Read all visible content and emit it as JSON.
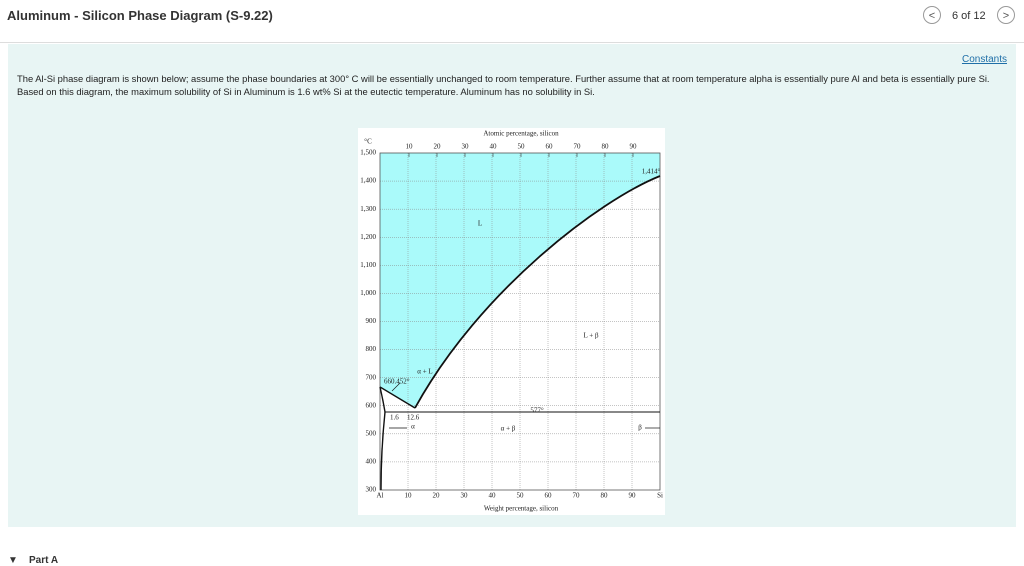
{
  "header": {
    "title": "Aluminum - Silicon Phase Diagram (S-9.22)",
    "pager": "6 of 12"
  },
  "constants_link": "Constants",
  "problem_text": "The Al-Si phase diagram is shown below; assume the phase boundaries at 300° C will be essentially unchanged to room temperature. Further assume that at room temperature alpha is essentially pure Al and beta is essentially pure Si. Based on this diagram, the maximum solubility of Si in Aluminum is 1.6 wt% Si at the eutectic temperature. Aluminum has no solubility in Si.",
  "diagram": {
    "top_axis_title": "Atomic percentage, silicon",
    "bottom_axis_title": "Weight percentage, silicon",
    "y_unit": "°C",
    "top_ticks": [
      "10",
      "20",
      "30",
      "40",
      "50",
      "60",
      "70",
      "80",
      "90"
    ],
    "bottom_ticks": [
      "Al",
      "10",
      "20",
      "30",
      "40",
      "50",
      "60",
      "70",
      "80",
      "90",
      "Si"
    ],
    "y_ticks": [
      "1,500",
      "1,400",
      "1,300",
      "1,200",
      "1,100",
      "1,000",
      "900",
      "800",
      "700",
      "600",
      "500",
      "400",
      "300"
    ],
    "regions": [
      "L",
      "L + β",
      "α + L",
      "α",
      "α + β",
      "β"
    ],
    "annotations": [
      "660.452°",
      "1.6",
      "12.6",
      "577°",
      "1,414°"
    ]
  },
  "part": "Part A"
}
